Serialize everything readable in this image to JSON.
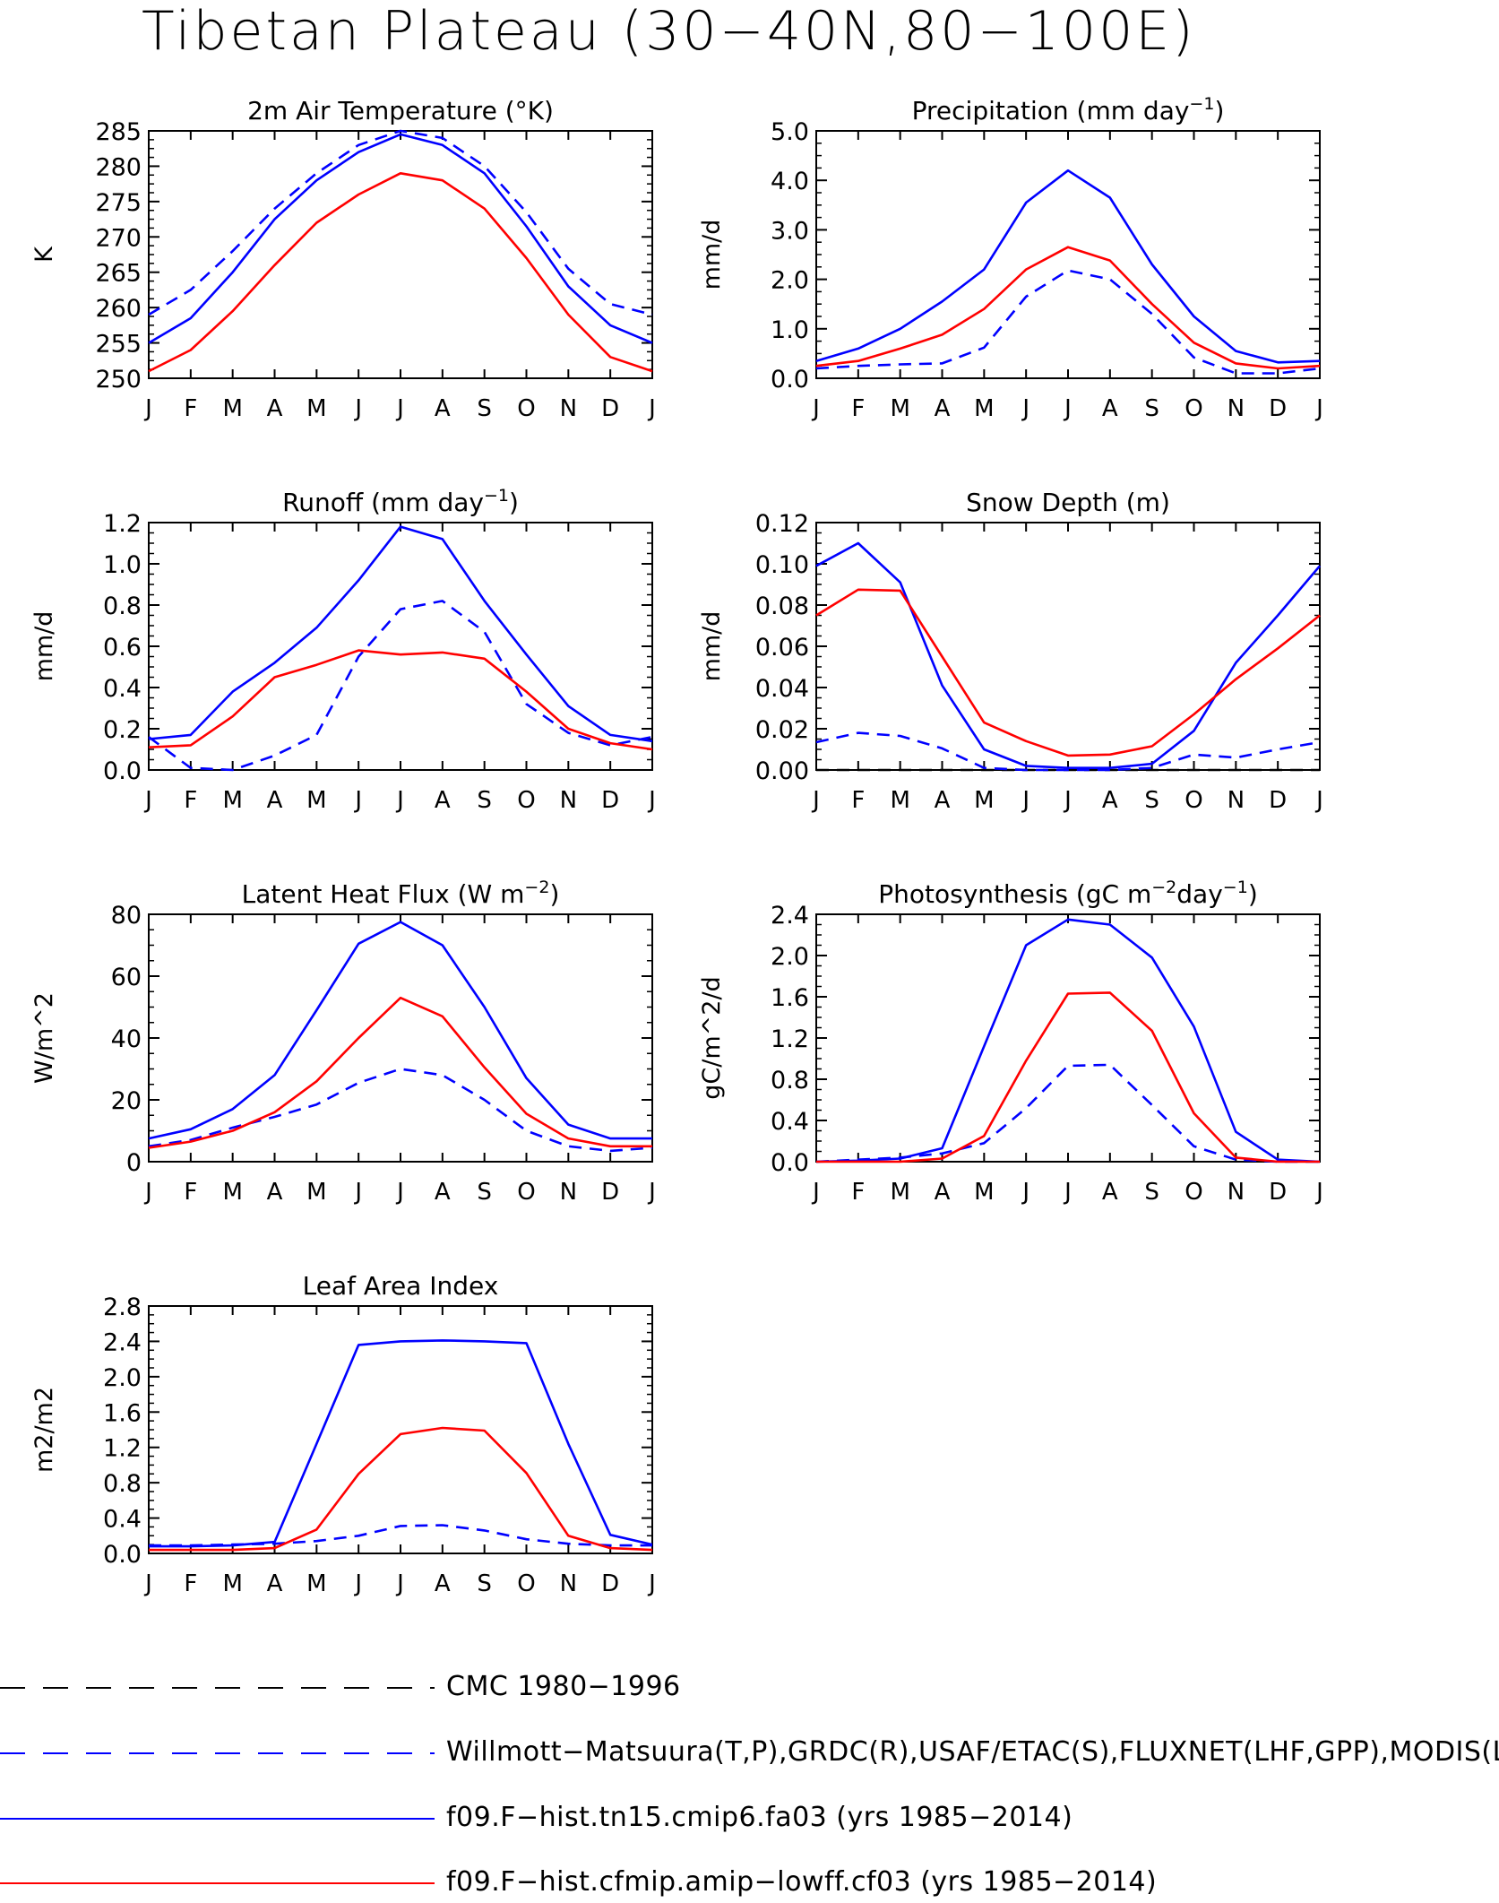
{
  "page": {
    "title": "Tibetan Plateau (30−40N,80−100E)"
  },
  "legend": [
    {
      "label": "CMC 1980−1996",
      "color": "#000000",
      "style": "dashed"
    },
    {
      "label": "Willmott−Matsuura(T,P),GRDC(R),USAF/ETAC(S),FLUXNET(LHF,GPP),MODIS(L",
      "color": "#0000ff",
      "style": "dashed"
    },
    {
      "label": "f09.F−hist.tn15.cmip6.fa03 (yrs 1985−2014)",
      "color": "#0000ff",
      "style": "solid"
    },
    {
      "label": "f09.F−hist.cfmip.amip−lowff.cf03 (yrs 1985−2014)",
      "color": "#ff0000",
      "style": "solid"
    }
  ],
  "chart_data": [
    {
      "type": "line",
      "title": "2m Air Temperature (°K)",
      "ylabel": "K",
      "categories": [
        "J",
        "F",
        "M",
        "A",
        "M",
        "J",
        "J",
        "A",
        "S",
        "O",
        "N",
        "D",
        "J"
      ],
      "ylim": [
        250,
        285
      ],
      "yticks": [
        "250",
        "255",
        "260",
        "265",
        "270",
        "275",
        "280",
        "285"
      ],
      "series": [
        {
          "name": "Willmott−Matsuura(T,P),GRDC(R),USAF/ETAC(S),FLUXNET(LHF,GPP),MODIS(L",
          "color": "#0000ff",
          "style": "dashed",
          "values": [
            259,
            262.5,
            268,
            274,
            279,
            283,
            285,
            284,
            280,
            273.5,
            265.5,
            260.5,
            259
          ]
        },
        {
          "name": "f09.F−hist.tn15.cmip6.fa03 (yrs 1985−2014)",
          "color": "#0000ff",
          "style": "solid",
          "values": [
            255,
            258.5,
            265,
            272.5,
            278,
            282,
            284.5,
            283,
            279,
            271.5,
            263,
            257.5,
            255
          ]
        },
        {
          "name": "f09.F−hist.cfmip.amip−lowff.cf03 (yrs 1985−2014)",
          "color": "#ff0000",
          "style": "solid",
          "values": [
            251,
            254,
            259.5,
            266,
            272,
            276,
            279,
            278,
            274,
            267,
            259,
            253,
            251
          ]
        }
      ]
    },
    {
      "type": "line",
      "title": "Precipitation (mm day",
      "title_sup": "−1",
      "title_end": ")",
      "ylabel": "mm/d",
      "categories": [
        "J",
        "F",
        "M",
        "A",
        "M",
        "J",
        "J",
        "A",
        "S",
        "O",
        "N",
        "D",
        "J"
      ],
      "ylim": [
        0,
        5
      ],
      "yticks": [
        "0.0",
        "1.0",
        "2.0",
        "3.0",
        "4.0",
        "5.0"
      ],
      "series": [
        {
          "name": "Willmott−Matsuura(T,P),GRDC(R),USAF/ETAC(S),FLUXNET(LHF,GPP),MODIS(L",
          "color": "#0000ff",
          "style": "dashed",
          "values": [
            0.2,
            0.25,
            0.28,
            0.3,
            0.62,
            1.65,
            2.18,
            2.0,
            1.3,
            0.42,
            0.1,
            0.1,
            0.2
          ]
        },
        {
          "name": "f09.F−hist.tn15.cmip6.fa03 (yrs 1985−2014)",
          "color": "#0000ff",
          "style": "solid",
          "values": [
            0.35,
            0.6,
            1.0,
            1.55,
            2.2,
            3.55,
            4.2,
            3.65,
            2.3,
            1.25,
            0.55,
            0.32,
            0.35
          ]
        },
        {
          "name": "f09.F−hist.cfmip.amip−lowff.cf03 (yrs 1985−2014)",
          "color": "#ff0000",
          "style": "solid",
          "values": [
            0.25,
            0.35,
            0.6,
            0.88,
            1.4,
            2.2,
            2.65,
            2.38,
            1.5,
            0.72,
            0.3,
            0.2,
            0.25
          ]
        }
      ]
    },
    {
      "type": "line",
      "title": "Runoff (mm day",
      "title_sup": "−1",
      "title_end": ")",
      "ylabel": "mm/d",
      "categories": [
        "J",
        "F",
        "M",
        "A",
        "M",
        "J",
        "J",
        "A",
        "S",
        "O",
        "N",
        "D",
        "J"
      ],
      "ylim": [
        0,
        1.2
      ],
      "yticks": [
        "0.0",
        "0.2",
        "0.4",
        "0.6",
        "0.8",
        "1.0",
        "1.2"
      ],
      "series": [
        {
          "name": "Willmott−Matsuura(T,P),GRDC(R),USAF/ETAC(S),FLUXNET(LHF,GPP),MODIS(L",
          "color": "#0000ff",
          "style": "dashed",
          "values": [
            0.16,
            0.01,
            0.0,
            0.07,
            0.17,
            0.55,
            0.78,
            0.82,
            0.67,
            0.32,
            0.18,
            0.12,
            0.16
          ]
        },
        {
          "name": "f09.F−hist.tn15.cmip6.fa03 (yrs 1985−2014)",
          "color": "#0000ff",
          "style": "solid",
          "values": [
            0.15,
            0.17,
            0.38,
            0.52,
            0.69,
            0.92,
            1.18,
            1.12,
            0.82,
            0.56,
            0.31,
            0.17,
            0.14
          ]
        },
        {
          "name": "f09.F−hist.cfmip.amip−lowff.cf03 (yrs 1985−2014)",
          "color": "#ff0000",
          "style": "solid",
          "values": [
            0.11,
            0.12,
            0.26,
            0.45,
            0.51,
            0.58,
            0.56,
            0.57,
            0.54,
            0.38,
            0.2,
            0.13,
            0.1
          ]
        }
      ]
    },
    {
      "type": "line",
      "title": "Snow Depth (m)",
      "ylabel": "mm/d",
      "categories": [
        "J",
        "F",
        "M",
        "A",
        "M",
        "J",
        "J",
        "A",
        "S",
        "O",
        "N",
        "D",
        "J"
      ],
      "ylim": [
        0,
        0.12
      ],
      "yticks": [
        "0.00",
        "0.02",
        "0.04",
        "0.06",
        "0.08",
        "0.10",
        "0.12"
      ],
      "series": [
        {
          "name": "CMC 1980−1996",
          "color": "#000000",
          "style": "dashed",
          "values": [
            0,
            0,
            0,
            0,
            0,
            0,
            0,
            0,
            0,
            0,
            0,
            0,
            0
          ]
        },
        {
          "name": "Willmott−Matsuura(T,P),GRDC(R),USAF/ETAC(S),FLUXNET(LHF,GPP),MODIS(L",
          "color": "#0000ff",
          "style": "dashed",
          "values": [
            0.0135,
            0.018,
            0.0165,
            0.0105,
            0.001,
            0.0,
            0.0,
            0.0,
            0.001,
            0.0075,
            0.006,
            0.01,
            0.0135
          ]
        },
        {
          "name": "f09.F−hist.tn15.cmip6.fa03 (yrs 1985−2014)",
          "color": "#0000ff",
          "style": "solid",
          "values": [
            0.099,
            0.11,
            0.091,
            0.041,
            0.01,
            0.002,
            0.001,
            0.001,
            0.003,
            0.019,
            0.052,
            0.075,
            0.099
          ]
        },
        {
          "name": "f09.F−hist.cfmip.amip−lowff.cf03 (yrs 1985−2014)",
          "color": "#ff0000",
          "style": "solid",
          "values": [
            0.075,
            0.0875,
            0.087,
            0.055,
            0.023,
            0.014,
            0.007,
            0.0075,
            0.0115,
            0.027,
            0.044,
            0.059,
            0.075
          ]
        }
      ]
    },
    {
      "type": "line",
      "title": "Latent Heat Flux (W m",
      "title_sup": "−2",
      "title_end": ")",
      "ylabel": "W/m^2",
      "categories": [
        "J",
        "F",
        "M",
        "A",
        "M",
        "J",
        "J",
        "A",
        "S",
        "O",
        "N",
        "D",
        "J"
      ],
      "ylim": [
        0,
        80
      ],
      "yticks": [
        "0",
        "20",
        "40",
        "60",
        "80"
      ],
      "series": [
        {
          "name": "Willmott−Matsuura(T,P),GRDC(R),USAF/ETAC(S),FLUXNET(LHF,GPP),MODIS(L",
          "color": "#0000ff",
          "style": "dashed",
          "values": [
            5,
            7,
            11,
            14.5,
            18.5,
            25.5,
            30,
            28,
            20,
            10,
            5,
            3.5,
            4.5
          ]
        },
        {
          "name": "f09.F−hist.tn15.cmip6.fa03 (yrs 1985−2014)",
          "color": "#0000ff",
          "style": "solid",
          "values": [
            7.5,
            10.5,
            17,
            28,
            49,
            70.5,
            77.5,
            70,
            50,
            27,
            12,
            7.5,
            7.5
          ]
        },
        {
          "name": "f09.F−hist.cfmip.amip−lowff.cf03 (yrs 1985−2014)",
          "color": "#ff0000",
          "style": "solid",
          "values": [
            4.5,
            6.5,
            10,
            16,
            26,
            40,
            53,
            47,
            30.5,
            15.5,
            7.5,
            5,
            5
          ]
        }
      ]
    },
    {
      "type": "line",
      "title": "Photosynthesis (gC m",
      "title_sup": "−2",
      "title_mid": "day",
      "title_sup2": "−1",
      "title_end": ")",
      "ylabel": "gC/m^2/d",
      "categories": [
        "J",
        "F",
        "M",
        "A",
        "M",
        "J",
        "J",
        "A",
        "S",
        "O",
        "N",
        "D",
        "J"
      ],
      "ylim": [
        0,
        2.4
      ],
      "yticks": [
        "0.0",
        "0.4",
        "0.8",
        "1.2",
        "1.6",
        "2.0",
        "2.4"
      ],
      "series": [
        {
          "name": "Willmott−Matsuura(T,P),GRDC(R),USAF/ETAC(S),FLUXNET(LHF,GPP),MODIS(L",
          "color": "#0000ff",
          "style": "dashed",
          "values": [
            0.0,
            0.02,
            0.04,
            0.08,
            0.18,
            0.52,
            0.93,
            0.94,
            0.55,
            0.15,
            0.02,
            0.0,
            0.0
          ]
        },
        {
          "name": "f09.F−hist.tn15.cmip6.fa03 (yrs 1985−2014)",
          "color": "#0000ff",
          "style": "solid",
          "values": [
            0.0,
            0.01,
            0.03,
            0.13,
            1.12,
            2.1,
            2.35,
            2.3,
            1.98,
            1.31,
            0.29,
            0.02,
            0.0
          ]
        },
        {
          "name": "f09.F−hist.cfmip.amip−lowff.cf03 (yrs 1985−2014)",
          "color": "#ff0000",
          "style": "solid",
          "values": [
            0.0,
            0.0,
            0.0,
            0.03,
            0.25,
            0.98,
            1.63,
            1.64,
            1.27,
            0.47,
            0.04,
            0.0,
            0.0
          ]
        }
      ]
    },
    {
      "type": "line",
      "title": "Leaf Area Index",
      "ylabel": "m2/m2",
      "categories": [
        "J",
        "F",
        "M",
        "A",
        "M",
        "J",
        "J",
        "A",
        "S",
        "O",
        "N",
        "D",
        "J"
      ],
      "ylim": [
        0,
        2.8
      ],
      "yticks": [
        "0.0",
        "0.4",
        "0.8",
        "1.2",
        "1.6",
        "2.0",
        "2.4",
        "2.8"
      ],
      "series": [
        {
          "name": "Willmott−Matsuura(T,P),GRDC(R),USAF/ETAC(S),FLUXNET(LHF,GPP),MODIS(L",
          "color": "#0000ff",
          "style": "dashed",
          "values": [
            0.09,
            0.09,
            0.1,
            0.11,
            0.14,
            0.2,
            0.31,
            0.32,
            0.26,
            0.16,
            0.11,
            0.09,
            0.09
          ]
        },
        {
          "name": "f09.F−hist.tn15.cmip6.fa03 (yrs 1985−2014)",
          "color": "#0000ff",
          "style": "solid",
          "values": [
            0.08,
            0.08,
            0.09,
            0.13,
            1.24,
            2.36,
            2.4,
            2.41,
            2.4,
            2.38,
            1.24,
            0.21,
            0.1
          ]
        },
        {
          "name": "f09.F−hist.cfmip.amip−lowff.cf03 (yrs 1985−2014)",
          "color": "#ff0000",
          "style": "solid",
          "values": [
            0.04,
            0.04,
            0.04,
            0.06,
            0.27,
            0.9,
            1.35,
            1.42,
            1.39,
            0.91,
            0.2,
            0.06,
            0.04
          ]
        }
      ]
    }
  ]
}
